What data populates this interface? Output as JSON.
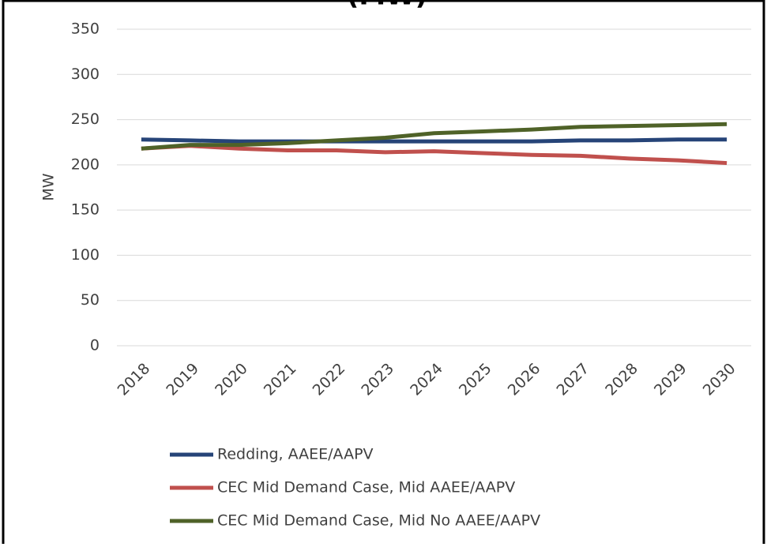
{
  "chart_data": {
    "type": "line",
    "title": "(MW)",
    "y_label": "MW",
    "categories": [
      "2018",
      "2019",
      "2020",
      "2021",
      "2022",
      "2023",
      "2024",
      "2025",
      "2026",
      "2027",
      "2028",
      "2029",
      "2030"
    ],
    "series": [
      {
        "name": "Redding, AAEE/AAPV",
        "color": "#264478",
        "values": [
          228,
          227,
          226,
          226,
          226,
          226,
          226,
          226,
          226,
          227,
          227,
          228,
          228
        ]
      },
      {
        "name": "CEC Mid Demand Case, Mid AAEE/AAPV",
        "color": "#c0504d",
        "values": [
          218,
          221,
          218,
          216,
          216,
          214,
          215,
          213,
          211,
          210,
          207,
          205,
          202
        ]
      },
      {
        "name": "CEC Mid Demand Case, Mid No AAEE/AAPV",
        "color": "#4f6228",
        "values": [
          218,
          222,
          222,
          224,
          227,
          230,
          235,
          237,
          239,
          242,
          243,
          244,
          245
        ]
      }
    ],
    "ylim": [
      0,
      350
    ],
    "yticks": [
      0,
      50,
      100,
      150,
      200,
      250,
      300,
      350
    ],
    "grid": true,
    "legend": "bottom"
  }
}
